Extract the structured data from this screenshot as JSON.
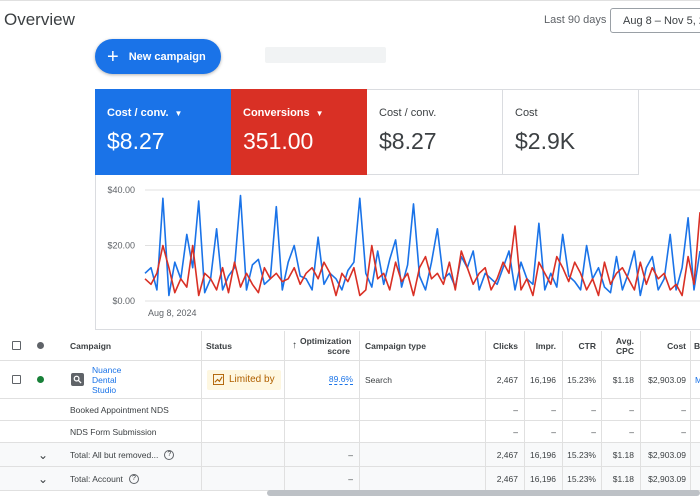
{
  "header": {
    "title": "Overview",
    "date_range_label": "Last 90 days",
    "date_range_value": "Aug 8 – Nov 5, 2"
  },
  "actions": {
    "new_campaign": "New campaign"
  },
  "scorecards": [
    {
      "label": "Cost / conv.",
      "value": "$8.27",
      "color": "#1a73e8"
    },
    {
      "label": "Conversions",
      "value": "351.00",
      "color": "#d93025"
    },
    {
      "label": "Cost / conv.",
      "value": "$8.27"
    },
    {
      "label": "Cost",
      "value": "$2.9K"
    }
  ],
  "chart_data": {
    "type": "line",
    "y_ticks": [
      "$40.00",
      "$20.00",
      "$0.00"
    ],
    "ylim": [
      0,
      40
    ],
    "x_tick": "Aug 8, 2024",
    "series": [
      {
        "color": "#1a73e8",
        "values": [
          10,
          12,
          4,
          37,
          2,
          14,
          8,
          24,
          12,
          36,
          3,
          8,
          26,
          4,
          9,
          12,
          38,
          4,
          13,
          15,
          6,
          8,
          34,
          4,
          14,
          20,
          9,
          8,
          4,
          23,
          6,
          10,
          8,
          4,
          11,
          14,
          37,
          10,
          5,
          18,
          6,
          15,
          22,
          5,
          13,
          35,
          9,
          4,
          14,
          26,
          8,
          10,
          5,
          16,
          12,
          18,
          4,
          10,
          8,
          6,
          12,
          18,
          4,
          14,
          8,
          6,
          28,
          4,
          10,
          5,
          24,
          9,
          7,
          4,
          20,
          8,
          12,
          5,
          3,
          16,
          4,
          10,
          18,
          2,
          12,
          16,
          4,
          8,
          24,
          4,
          12,
          30,
          4,
          18
        ]
      },
      {
        "color": "#d93025",
        "values": [
          8,
          6,
          10,
          20,
          12,
          3,
          8,
          5,
          20,
          2,
          10,
          8,
          4,
          12,
          3,
          14,
          5,
          10,
          6,
          3,
          12,
          8,
          10,
          7,
          8,
          12,
          6,
          10,
          12,
          8,
          14,
          10,
          2,
          10,
          7,
          12,
          2,
          4,
          20,
          8,
          10,
          4,
          14,
          7,
          10,
          2,
          12,
          16,
          8,
          10,
          6,
          14,
          4,
          18,
          12,
          6,
          10,
          12,
          4,
          8,
          14,
          10,
          27,
          4,
          8,
          2,
          14,
          10,
          6,
          16,
          12,
          7,
          14,
          10,
          4,
          8,
          2,
          14,
          6,
          10,
          12,
          8,
          4,
          14,
          6,
          12,
          8,
          10,
          4,
          6,
          2,
          16,
          6,
          32
        ]
      }
    ]
  },
  "table": {
    "headers": {
      "campaign": "Campaign",
      "status": "Status",
      "opt_score": "Optimization score",
      "campaign_type": "Campaign type",
      "clicks": "Clicks",
      "impr": "Impr.",
      "ctr": "CTR",
      "avg_cpc": "Avg. CPC",
      "cost": "Cost",
      "extra": "B"
    },
    "campaign_row": {
      "name_line1": "Nuance",
      "name_line2": "Dental",
      "name_line3": "Studio",
      "status": "Limited by",
      "opt_score": "89.6%",
      "campaign_type": "Search",
      "clicks": "2,467",
      "impr": "16,196",
      "ctr": "15.23%",
      "avg_cpc": "$1.18",
      "cost": "$2,903.09",
      "extra": "M"
    },
    "sub_rows": [
      {
        "name": "Booked Appointment NDS",
        "dash": "–"
      },
      {
        "name": "NDS Form Submission",
        "dash": "–"
      }
    ],
    "totals": [
      {
        "label": "Total: All but removed...",
        "opt_score": "–",
        "clicks": "2,467",
        "impr": "16,196",
        "ctr": "15.23%",
        "avg_cpc": "$1.18",
        "cost": "$2,903.09"
      },
      {
        "label": "Total: Account",
        "opt_score": "–",
        "clicks": "2,467",
        "impr": "16,196",
        "ctr": "15.23%",
        "avg_cpc": "$1.18",
        "cost": "$2,903.09"
      }
    ]
  }
}
